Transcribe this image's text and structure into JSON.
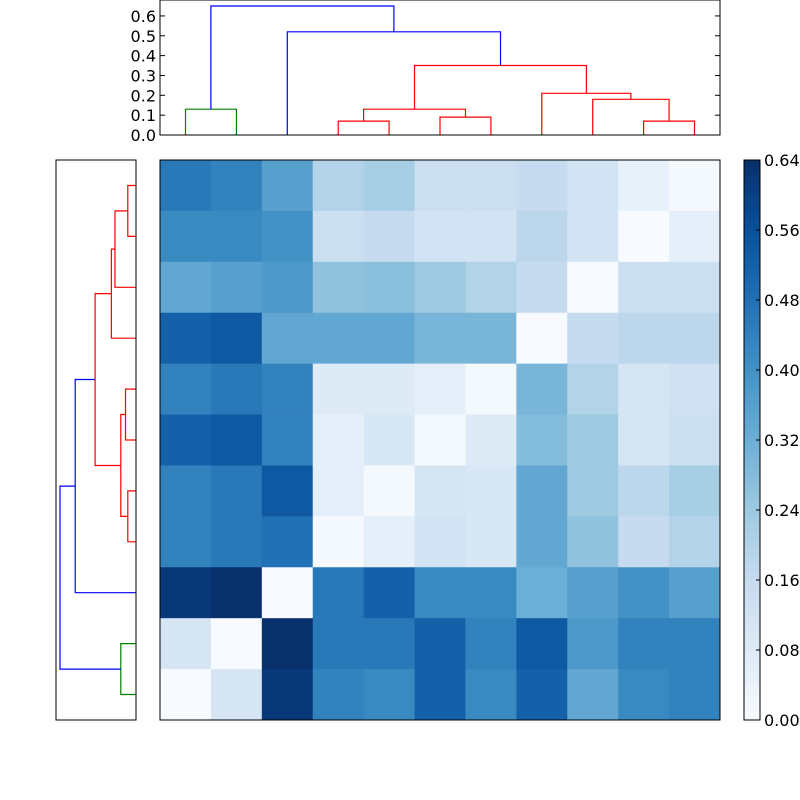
{
  "chart_data": [
    {
      "type": "dendrogram",
      "orientation": "top",
      "ylim": [
        0,
        0.65
      ],
      "yticks": [
        "0.0",
        "0.1",
        "0.2",
        "0.3",
        "0.4",
        "0.5",
        "0.6"
      ],
      "colors": {
        "green": "#008000",
        "red": "#ff0000",
        "blue": "#0000ff"
      },
      "links": [
        {
          "x": [
            5,
            5,
            15,
            15
          ],
          "y": [
            0,
            0.13,
            0.13,
            0
          ],
          "color": "green"
        },
        {
          "x": [
            35,
            35,
            45,
            45
          ],
          "y": [
            0,
            0.07,
            0.07,
            0
          ],
          "color": "red"
        },
        {
          "x": [
            55,
            55,
            65,
            65
          ],
          "y": [
            0,
            0.09,
            0.09,
            0
          ],
          "color": "red"
        },
        {
          "x": [
            40,
            40,
            60,
            60
          ],
          "y": [
            0.07,
            0.13,
            0.13,
            0.09
          ],
          "color": "red"
        },
        {
          "x": [
            95,
            95,
            105,
            105
          ],
          "y": [
            0,
            0.07,
            0.07,
            0
          ],
          "color": "red"
        },
        {
          "x": [
            85,
            85,
            100,
            100
          ],
          "y": [
            0,
            0.18,
            0.18,
            0.07
          ],
          "color": "red"
        },
        {
          "x": [
            75,
            75,
            92.5,
            92.5
          ],
          "y": [
            0,
            0.21,
            0.21,
            0.18
          ],
          "color": "red"
        },
        {
          "x": [
            50,
            50,
            83.75,
            83.75
          ],
          "y": [
            0.13,
            0.35,
            0.35,
            0.21
          ],
          "color": "red"
        },
        {
          "x": [
            25,
            25,
            66.875,
            66.875
          ],
          "y": [
            0,
            0.52,
            0.52,
            0.35
          ],
          "color": "blue"
        },
        {
          "x": [
            10,
            10,
            45.9375,
            45.9375
          ],
          "y": [
            0.13,
            0.65,
            0.65,
            0.52
          ],
          "color": "blue"
        }
      ]
    },
    {
      "type": "dendrogram",
      "orientation": "left",
      "colors": {
        "green": "#008000",
        "red": "#ff0000",
        "blue": "#0000ff"
      },
      "links": [
        {
          "y": [
            5,
            5,
            15,
            15
          ],
          "x": [
            0,
            0.13,
            0.13,
            0
          ],
          "color": "green"
        },
        {
          "y": [
            35,
            35,
            45,
            45
          ],
          "x": [
            0,
            0.07,
            0.07,
            0
          ],
          "color": "red"
        },
        {
          "y": [
            55,
            55,
            65,
            65
          ],
          "x": [
            0,
            0.09,
            0.09,
            0
          ],
          "color": "red"
        },
        {
          "y": [
            40,
            40,
            60,
            60
          ],
          "x": [
            0.07,
            0.13,
            0.13,
            0.09
          ],
          "color": "red"
        },
        {
          "y": [
            95,
            95,
            105,
            105
          ],
          "x": [
            0,
            0.07,
            0.07,
            0
          ],
          "color": "red"
        },
        {
          "y": [
            85,
            85,
            100,
            100
          ],
          "x": [
            0,
            0.18,
            0.18,
            0.07
          ],
          "color": "red"
        },
        {
          "y": [
            75,
            75,
            92.5,
            92.5
          ],
          "x": [
            0,
            0.21,
            0.21,
            0.18
          ],
          "color": "red"
        },
        {
          "y": [
            50,
            50,
            83.75,
            83.75
          ],
          "x": [
            0.13,
            0.35,
            0.35,
            0.21
          ],
          "color": "red"
        },
        {
          "y": [
            25,
            25,
            66.875,
            66.875
          ],
          "x": [
            0,
            0.52,
            0.52,
            0.35
          ],
          "color": "blue"
        },
        {
          "y": [
            10,
            10,
            45.9375,
            45.9375
          ],
          "x": [
            0.13,
            0.65,
            0.65,
            0.52
          ],
          "color": "blue"
        }
      ]
    },
    {
      "type": "heatmap",
      "colormap": "Blues",
      "vmin": 0.0,
      "vmax": 0.64,
      "colorbar_ticks": [
        "0.00",
        "0.08",
        "0.16",
        "0.24",
        "0.32",
        "0.40",
        "0.48",
        "0.56",
        "0.64"
      ],
      "rows_top_to_bottom": [
        [
          0.46,
          0.44,
          0.36,
          0.2,
          0.22,
          0.14,
          0.14,
          0.16,
          0.12,
          0.05,
          0.01
        ],
        [
          0.42,
          0.42,
          0.4,
          0.14,
          0.16,
          0.12,
          0.12,
          0.18,
          0.12,
          0.0,
          0.06
        ],
        [
          0.34,
          0.36,
          0.38,
          0.26,
          0.27,
          0.24,
          0.2,
          0.16,
          0.0,
          0.14,
          0.14
        ],
        [
          0.52,
          0.54,
          0.34,
          0.34,
          0.34,
          0.3,
          0.3,
          0.0,
          0.16,
          0.18,
          0.18
        ],
        [
          0.44,
          0.46,
          0.44,
          0.08,
          0.08,
          0.06,
          0.01,
          0.3,
          0.2,
          0.11,
          0.13
        ],
        [
          0.52,
          0.54,
          0.44,
          0.06,
          0.1,
          0.01,
          0.08,
          0.28,
          0.24,
          0.11,
          0.14
        ],
        [
          0.44,
          0.46,
          0.54,
          0.06,
          0.01,
          0.11,
          0.1,
          0.34,
          0.24,
          0.18,
          0.22
        ],
        [
          0.44,
          0.46,
          0.48,
          0.01,
          0.06,
          0.12,
          0.1,
          0.34,
          0.26,
          0.16,
          0.2
        ],
        [
          0.62,
          0.64,
          0.0,
          0.46,
          0.52,
          0.42,
          0.42,
          0.32,
          0.36,
          0.4,
          0.36
        ],
        [
          0.11,
          0.0,
          0.64,
          0.46,
          0.46,
          0.52,
          0.44,
          0.54,
          0.38,
          0.44,
          0.44
        ],
        [
          0.0,
          0.11,
          0.62,
          0.44,
          0.42,
          0.52,
          0.42,
          0.52,
          0.34,
          0.42,
          0.44
        ]
      ]
    }
  ]
}
